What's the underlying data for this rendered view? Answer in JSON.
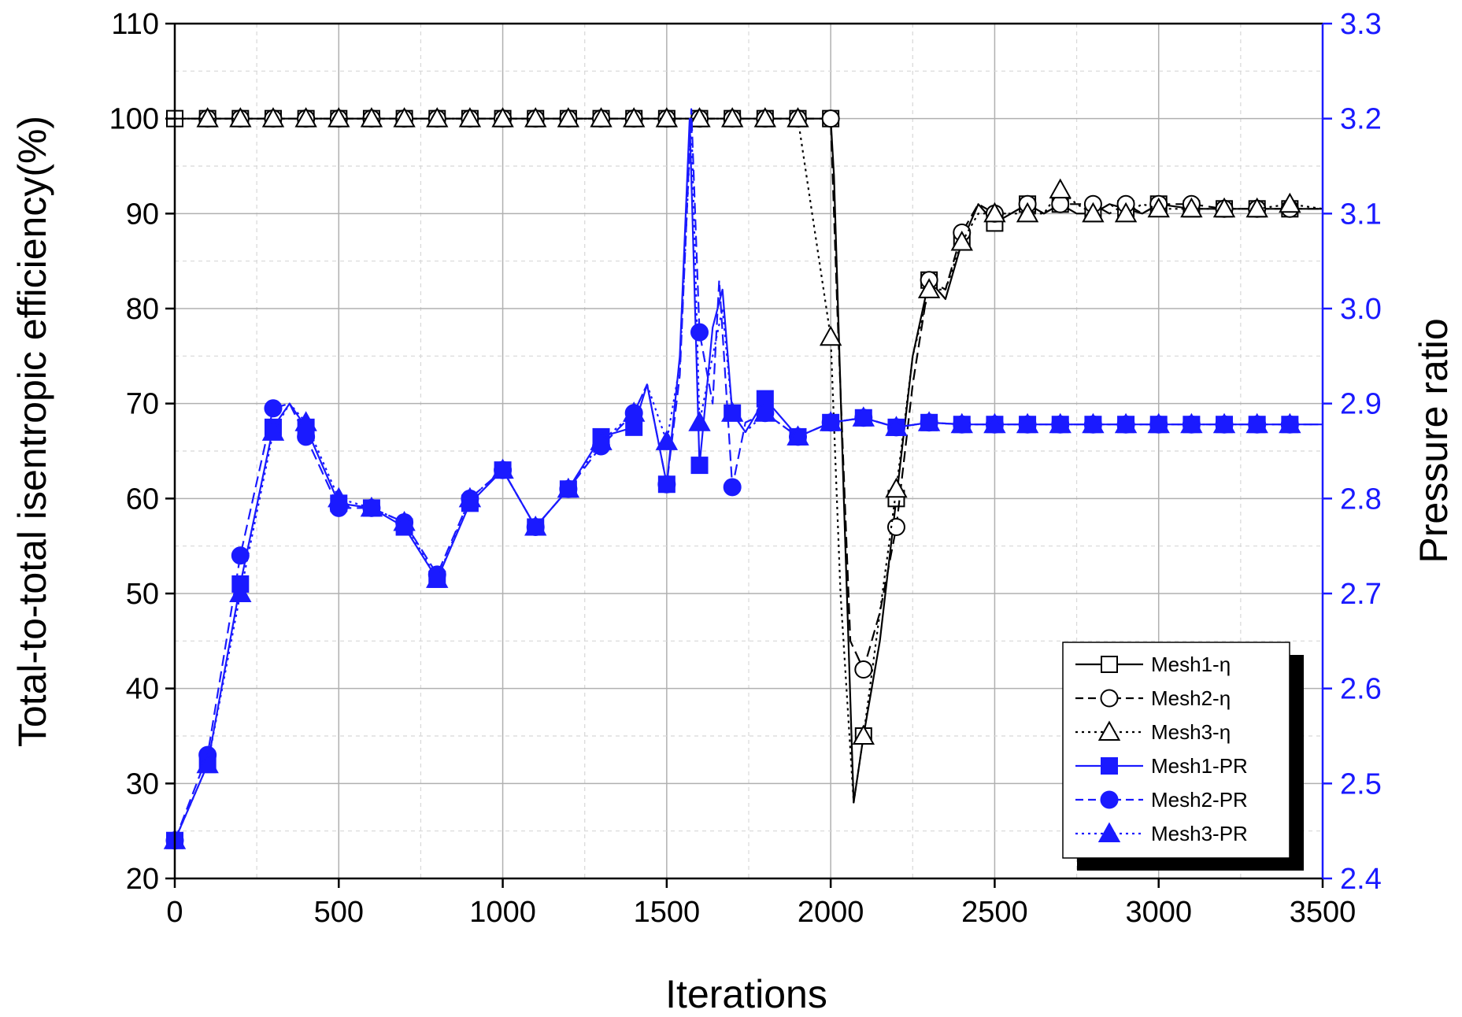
{
  "chart_data": {
    "type": "line",
    "xlabel": "Iterations",
    "ylabel_left": "Total-to-total isentropic efficiency(%)",
    "ylabel_right": "Pressure ratio",
    "xlim": [
      0,
      3500
    ],
    "ylim_left": [
      20,
      110
    ],
    "ylim_right": [
      2.4,
      3.3
    ],
    "x_ticks": [
      0,
      500,
      1000,
      1500,
      2000,
      2500,
      3000,
      3500
    ],
    "y_ticks_left": [
      20,
      30,
      40,
      50,
      60,
      70,
      80,
      90,
      100,
      110
    ],
    "y_ticks_right": [
      2.4,
      2.5,
      2.6,
      2.7,
      2.8,
      2.9,
      3.0,
      3.1,
      3.2,
      3.3
    ],
    "grid": true,
    "legend_position": "lower-right",
    "colors": {
      "efficiency": "#000000",
      "pressure_ratio": "#1a1aff",
      "right_axis": "#1a1aff"
    },
    "series": [
      {
        "name": "Mesh1-η",
        "axis": "left",
        "marker": "square-open",
        "dash": "solid",
        "x": [
          0,
          100,
          200,
          300,
          400,
          500,
          600,
          700,
          800,
          900,
          1000,
          1100,
          1200,
          1300,
          1400,
          1500,
          1600,
          1700,
          1800,
          1900,
          2000,
          2010,
          2040,
          2070,
          2100,
          2150,
          2200,
          2250,
          2300,
          2350,
          2400,
          2450,
          2500,
          2550,
          2600,
          2650,
          2700,
          2750,
          2800,
          2850,
          2900,
          2950,
          3000,
          3100,
          3200,
          3300,
          3400,
          3500
        ],
        "values": [
          100,
          100,
          100,
          100,
          100,
          100,
          100,
          100,
          100,
          100,
          100,
          100,
          100,
          100,
          100,
          100,
          100,
          100,
          100,
          100,
          100,
          94,
          60,
          28,
          35,
          45,
          60,
          75,
          83,
          81,
          87,
          91,
          89,
          90,
          91,
          90,
          91,
          90,
          90,
          91,
          90.5,
          90,
          91,
          90.5,
          90.5,
          90.5,
          90.5,
          90.5
        ]
      },
      {
        "name": "Mesh2-η",
        "axis": "left",
        "marker": "circle-open",
        "dash": "dash",
        "x": [
          0,
          100,
          200,
          300,
          400,
          500,
          600,
          700,
          800,
          900,
          1000,
          1100,
          1200,
          1300,
          1400,
          1500,
          1600,
          1700,
          1800,
          1900,
          2000,
          2020,
          2060,
          2100,
          2150,
          2200,
          2250,
          2300,
          2350,
          2400,
          2450,
          2500,
          2550,
          2600,
          2650,
          2700,
          2750,
          2800,
          2850,
          2900,
          2950,
          3000,
          3100,
          3200,
          3300,
          3400,
          3500
        ],
        "values": [
          100,
          100,
          100,
          100,
          100,
          100,
          100,
          100,
          100,
          100,
          100,
          100,
          100,
          100,
          100,
          100,
          100,
          100,
          100,
          100,
          100,
          80,
          45,
          42,
          48,
          57,
          72,
          83,
          82,
          88,
          91,
          90,
          90,
          91,
          90,
          91,
          91,
          91,
          90,
          91,
          90,
          91,
          91,
          90.5,
          90.5,
          90.5,
          90.5
        ]
      },
      {
        "name": "Mesh3-η",
        "axis": "left",
        "marker": "triangle-open",
        "dash": "dot",
        "x": [
          0,
          100,
          200,
          300,
          400,
          500,
          600,
          700,
          800,
          900,
          1000,
          1100,
          1200,
          1300,
          1400,
          1500,
          1600,
          1700,
          1800,
          1900,
          2000,
          2030,
          2070,
          2100,
          2150,
          2200,
          2250,
          2300,
          2350,
          2400,
          2450,
          2500,
          2550,
          2600,
          2650,
          2700,
          2750,
          2800,
          2850,
          2900,
          2950,
          3000,
          3100,
          3200,
          3300,
          3400,
          3500
        ],
        "values": [
          100,
          100,
          100,
          100,
          100,
          100,
          100,
          100,
          100,
          100,
          100,
          100,
          100,
          100,
          100,
          100,
          100,
          100,
          100,
          100,
          77,
          50,
          28,
          35,
          48,
          61,
          75,
          82,
          82,
          87,
          90,
          90,
          90,
          90,
          90,
          92.5,
          91,
          90,
          91,
          90,
          91,
          90.5,
          90.5,
          90.5,
          90.5,
          91,
          90.5
        ]
      },
      {
        "name": "Mesh1-PR",
        "axis": "right",
        "marker": "square-filled",
        "dash": "solid",
        "x": [
          0,
          100,
          200,
          300,
          350,
          400,
          500,
          600,
          700,
          800,
          900,
          1000,
          1100,
          1200,
          1300,
          1400,
          1440,
          1500,
          1540,
          1570,
          1600,
          1640,
          1670,
          1700,
          1740,
          1800,
          1900,
          2000,
          2100,
          2200,
          2300,
          2400,
          2500,
          2600,
          2700,
          2800,
          2900,
          3000,
          3100,
          3200,
          3300,
          3400,
          3500
        ],
        "values": [
          2.44,
          2.52,
          2.71,
          2.875,
          2.9,
          2.875,
          2.795,
          2.79,
          2.77,
          2.715,
          2.795,
          2.83,
          2.77,
          2.81,
          2.865,
          2.875,
          2.92,
          2.815,
          2.95,
          3.2,
          2.835,
          2.98,
          3.02,
          2.89,
          2.87,
          2.905,
          2.865,
          2.88,
          2.885,
          2.875,
          2.88,
          2.878,
          2.878,
          2.878,
          2.878,
          2.878,
          2.878,
          2.878,
          2.878,
          2.878,
          2.878,
          2.878,
          2.878
        ]
      },
      {
        "name": "Mesh2-PR",
        "axis": "right",
        "marker": "circle-filled",
        "dash": "dash",
        "x": [
          0,
          100,
          200,
          300,
          350,
          400,
          500,
          600,
          700,
          800,
          900,
          1000,
          1100,
          1200,
          1300,
          1400,
          1440,
          1500,
          1540,
          1575,
          1600,
          1640,
          1660,
          1700,
          1740,
          1800,
          1900,
          2000,
          2100,
          2200,
          2300,
          2400,
          2500,
          2600,
          2700,
          2800,
          2900,
          3000,
          3100,
          3200,
          3300,
          3400,
          3500
        ],
        "values": [
          2.44,
          2.53,
          2.74,
          2.895,
          2.9,
          2.865,
          2.79,
          2.79,
          2.775,
          2.72,
          2.8,
          2.83,
          2.77,
          2.81,
          2.855,
          2.89,
          2.92,
          2.815,
          2.93,
          3.21,
          2.975,
          2.9,
          3.03,
          2.812,
          2.88,
          2.89,
          2.865,
          2.88,
          2.885,
          2.875,
          2.88,
          2.878,
          2.878,
          2.878,
          2.878,
          2.878,
          2.878,
          2.878,
          2.878,
          2.878,
          2.878,
          2.878,
          2.878
        ]
      },
      {
        "name": "Mesh3-PR",
        "axis": "right",
        "marker": "triangle-filled",
        "dash": "dot",
        "x": [
          0,
          100,
          200,
          300,
          350,
          400,
          500,
          600,
          700,
          800,
          900,
          1000,
          1100,
          1200,
          1300,
          1400,
          1440,
          1500,
          1540,
          1575,
          1600,
          1640,
          1670,
          1700,
          1740,
          1800,
          1900,
          2000,
          2100,
          2200,
          2300,
          2400,
          2500,
          2600,
          2700,
          2800,
          2900,
          3000,
          3100,
          3200,
          3300,
          3400,
          3500
        ],
        "values": [
          2.44,
          2.52,
          2.7,
          2.87,
          2.9,
          2.88,
          2.8,
          2.79,
          2.775,
          2.715,
          2.8,
          2.83,
          2.77,
          2.81,
          2.86,
          2.89,
          2.92,
          2.86,
          2.94,
          3.2,
          2.88,
          2.95,
          3.0,
          2.89,
          2.87,
          2.89,
          2.865,
          2.88,
          2.885,
          2.875,
          2.88,
          2.878,
          2.878,
          2.878,
          2.878,
          2.878,
          2.878,
          2.878,
          2.878,
          2.878,
          2.878,
          2.878,
          2.878
        ]
      }
    ]
  }
}
